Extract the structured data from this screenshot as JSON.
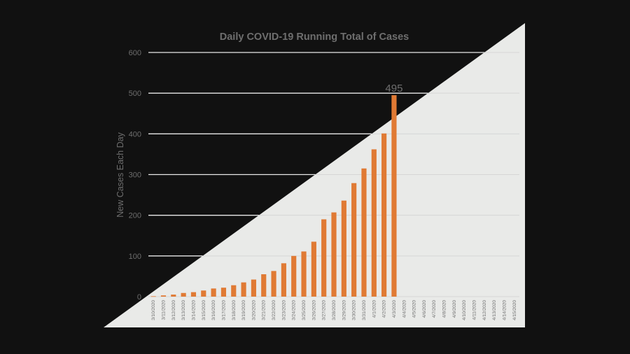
{
  "colors": {
    "background": "#111111",
    "triangle": "#E9EAE8",
    "bar": "#E07A34",
    "gridline_on_dark": "#E8E8E8",
    "gridline_on_light": "#D6D6D6",
    "text": "#6E6E6E"
  },
  "chart_data": {
    "type": "bar",
    "title": "Daily COVID-19 Running Total of Cases",
    "ylabel": "New Cases Each Day",
    "xlabel": "",
    "ylim": [
      0,
      600
    ],
    "yticks": [
      0,
      100,
      200,
      300,
      400,
      500,
      600
    ],
    "grid": true,
    "categories": [
      "3/10/2020",
      "3/11/2020",
      "3/12/2020",
      "3/13/2020",
      "3/14/2020",
      "3/15/2020",
      "3/16/2020",
      "3/17/2020",
      "3/18/2020",
      "3/19/2020",
      "3/20/2020",
      "3/21/2020",
      "3/22/2020",
      "3/23/2020",
      "3/24/2020",
      "3/25/2020",
      "3/26/2020",
      "3/27/2020",
      "3/28/2020",
      "3/29/2020",
      "3/30/2020",
      "3/31/2020",
      "4/1/2020",
      "4/2/2020",
      "4/3/2020",
      "4/4/2020",
      "4/5/2020",
      "4/6/2020",
      "4/7/2020",
      "4/8/2020",
      "4/9/2020",
      "4/10/2020",
      "4/11/2020",
      "4/12/2020",
      "4/13/2020",
      "4/14/2020",
      "4/15/2020"
    ],
    "values": [
      1,
      3,
      5,
      9,
      11,
      15,
      20,
      22,
      28,
      35,
      42,
      55,
      63,
      82,
      100,
      111,
      135,
      190,
      207,
      236,
      279,
      315,
      362,
      401,
      495,
      null,
      null,
      null,
      null,
      null,
      null,
      null,
      null,
      null,
      null,
      null,
      null
    ],
    "data_labels": [
      {
        "category": "4/3/2020",
        "text": "495"
      }
    ]
  }
}
